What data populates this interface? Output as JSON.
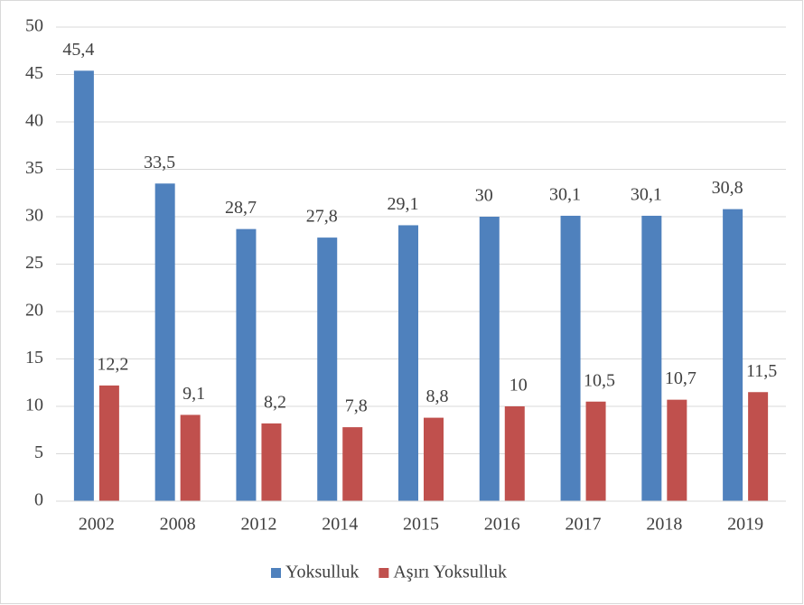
{
  "chart_data": {
    "type": "bar",
    "categories": [
      "2002",
      "2008",
      "2012",
      "2014",
      "2015",
      "2016",
      "2017",
      "2018",
      "2019"
    ],
    "series": [
      {
        "name": "Yoksulluk",
        "color": "#4f81bd",
        "values": [
          45.4,
          33.5,
          28.7,
          27.8,
          29.1,
          30,
          30.1,
          30.1,
          30.8
        ],
        "value_labels": [
          "45,4",
          "33,5",
          "28,7",
          "27,8",
          "29,1",
          "30",
          "30,1",
          "30,1",
          "30,8"
        ]
      },
      {
        "name": "Aşırı Yoksulluk",
        "color": "#c0504d",
        "values": [
          12.2,
          9.1,
          8.2,
          7.8,
          8.8,
          10,
          10.5,
          10.7,
          11.5
        ],
        "value_labels": [
          "12,2",
          "9,1",
          "8,2",
          "7,8",
          "8,8",
          "10",
          "10,5",
          "10,7",
          "11,5"
        ]
      }
    ],
    "ylim": [
      0,
      50
    ],
    "yticks": [
      0,
      5,
      10,
      15,
      20,
      25,
      30,
      35,
      40,
      45,
      50
    ],
    "grid": true,
    "legend": "bottom"
  }
}
